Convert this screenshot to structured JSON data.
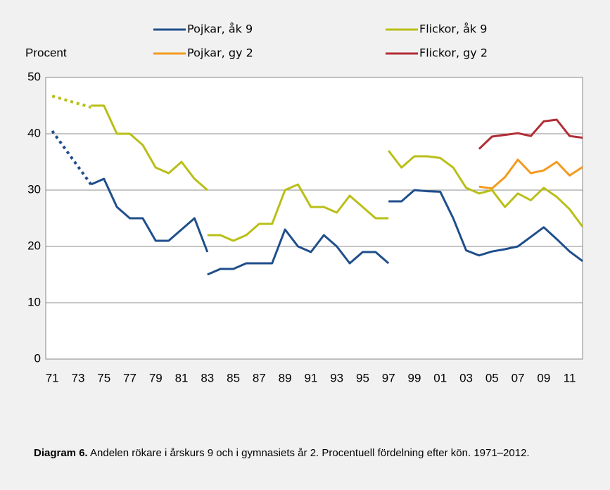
{
  "chart_data": {
    "type": "line",
    "y_label": "Procent",
    "x": [
      1971,
      1974,
      null,
      1974,
      1975,
      1976,
      1977,
      1978,
      1979,
      1980,
      1981,
      1982,
      1983,
      null,
      1983,
      1984,
      1985,
      1986,
      1987,
      1988,
      1989,
      1990,
      1991,
      1992,
      1993,
      1994,
      1995,
      1996,
      1997,
      null,
      1997,
      1998,
      1999,
      2000,
      2001,
      2002,
      2003,
      2004,
      2005,
      2006,
      2007,
      2008,
      2009,
      2010,
      2011,
      2012
    ],
    "dashed_pieces": [
      0
    ],
    "series": [
      {
        "name": "Pojkar, åk 9",
        "color": "#1f4e8c",
        "values": [
          40.5,
          31,
          null,
          31,
          32,
          27,
          25,
          25,
          21,
          21,
          23,
          25,
          19,
          null,
          15,
          16,
          16,
          17,
          17,
          17,
          23,
          20,
          19,
          22,
          20,
          17,
          19,
          19,
          17,
          null,
          28,
          28,
          30,
          29.8,
          29.7,
          25,
          19.3,
          18.4,
          19.1,
          19.5,
          20,
          21.7,
          23.4,
          21.3,
          19.1,
          17.4
        ]
      },
      {
        "name": "Flickor, åk 9",
        "color": "#b9bf17",
        "values": [
          46.7,
          44.7,
          null,
          45,
          45,
          40,
          40,
          38,
          34,
          33,
          35,
          32,
          30,
          null,
          22,
          22,
          21,
          22,
          24,
          24,
          30,
          31,
          27,
          27,
          26,
          29,
          27,
          25,
          25,
          null,
          37,
          34,
          36,
          36,
          35.7,
          34,
          30.4,
          29.4,
          30,
          27,
          29.4,
          28.2,
          30.4,
          28.8,
          26.6,
          23.5
        ]
      },
      {
        "name": "Pojkar, gy 2",
        "color": "#f39a1e",
        "values": [
          null,
          null,
          null,
          null,
          null,
          null,
          null,
          null,
          null,
          null,
          null,
          null,
          null,
          null,
          null,
          null,
          null,
          null,
          null,
          null,
          null,
          null,
          null,
          null,
          null,
          null,
          null,
          null,
          null,
          null,
          null,
          null,
          null,
          null,
          null,
          null,
          null,
          30.6,
          30.3,
          32.3,
          35.4,
          33,
          33.5,
          35,
          32.6,
          34.1
        ]
      },
      {
        "name": "Flickor, gy 2",
        "color": "#b22d36",
        "values": [
          null,
          null,
          null,
          null,
          null,
          null,
          null,
          null,
          null,
          null,
          null,
          null,
          null,
          null,
          null,
          null,
          null,
          null,
          null,
          null,
          null,
          null,
          null,
          null,
          null,
          null,
          null,
          null,
          null,
          null,
          null,
          null,
          null,
          null,
          null,
          null,
          null,
          37.3,
          39.5,
          39.8,
          40.1,
          39.6,
          42.2,
          42.5,
          39.6,
          39.3
        ]
      }
    ],
    "xlim": [
      1970.5,
      2012
    ],
    "xticks": [
      {
        "value": 1971,
        "label": "71"
      },
      {
        "value": 1973,
        "label": "73"
      },
      {
        "value": 1975,
        "label": "75"
      },
      {
        "value": 1977,
        "label": "77"
      },
      {
        "value": 1979,
        "label": "79"
      },
      {
        "value": 1981,
        "label": "81"
      },
      {
        "value": 1983,
        "label": "83"
      },
      {
        "value": 1985,
        "label": "85"
      },
      {
        "value": 1987,
        "label": "87"
      },
      {
        "value": 1989,
        "label": "89"
      },
      {
        "value": 1991,
        "label": "91"
      },
      {
        "value": 1993,
        "label": "93"
      },
      {
        "value": 1995,
        "label": "95"
      },
      {
        "value": 1997,
        "label": "97"
      },
      {
        "value": 1999,
        "label": "99"
      },
      {
        "value": 2001,
        "label": "01"
      },
      {
        "value": 2003,
        "label": "03"
      },
      {
        "value": 2005,
        "label": "05"
      },
      {
        "value": 2007,
        "label": "07"
      },
      {
        "value": 2009,
        "label": "09"
      },
      {
        "value": 2011,
        "label": "11"
      }
    ],
    "ylim": [
      0,
      50
    ],
    "yticks": [
      0,
      10,
      20,
      30,
      40,
      50
    ],
    "grid": true,
    "caption": {
      "label": "Diagram 6.",
      "text": "Andelen rökare i årskurs 9 och i gymnasiets år 2. Procentuell fördelning efter kön. 1971–2012."
    }
  }
}
